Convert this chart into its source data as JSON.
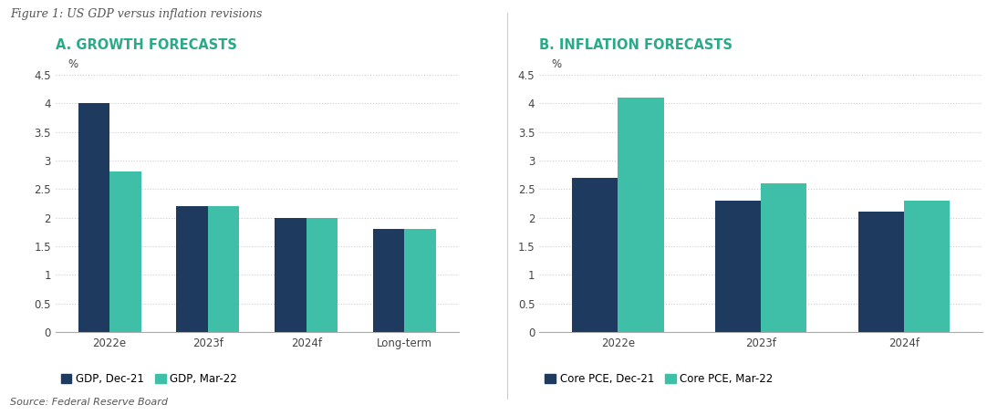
{
  "fig_title": "Figure 1: US GDP versus inflation revisions",
  "background_color": "#ffffff",
  "dark_blue": "#1e3a5f",
  "teal": "#40bfa8",
  "teal_title": "#2aaa8a",
  "fig_title_color": "#555555",
  "panel_A": {
    "title": "A. GROWTH FORECASTS",
    "categories": [
      "2022e",
      "2023f",
      "2024f",
      "Long-term"
    ],
    "series1_label": "GDP, Dec-21",
    "series2_label": "GDP, Mar-22",
    "series1_values": [
      4.0,
      2.2,
      2.0,
      1.8
    ],
    "series2_values": [
      2.8,
      2.2,
      2.0,
      1.8
    ],
    "ylabel": "%",
    "ylim": [
      0,
      4.5
    ],
    "yticks": [
      0,
      0.5,
      1,
      1.5,
      2,
      2.5,
      3,
      3.5,
      4,
      4.5
    ],
    "ytick_labels": [
      "0",
      "0.5",
      "1",
      "1.5",
      "2",
      "2.5",
      "3",
      "3.5",
      "4",
      "4.5"
    ]
  },
  "panel_B": {
    "title": "B. INFLATION FORECASTS",
    "categories": [
      "2022e",
      "2023f",
      "2024f"
    ],
    "series1_label": "Core PCE, Dec-21",
    "series2_label": "Core PCE, Mar-22",
    "series1_values": [
      2.7,
      2.3,
      2.1
    ],
    "series2_values": [
      4.1,
      2.6,
      2.3
    ],
    "ylabel": "%",
    "ylim": [
      0,
      4.5
    ],
    "yticks": [
      0,
      0.5,
      1,
      1.5,
      2,
      2.5,
      3,
      3.5,
      4,
      4.5
    ],
    "ytick_labels": [
      "0",
      "0.5",
      "1",
      "1.5",
      "2",
      "2.5",
      "3",
      "3.5",
      "4",
      "4.5"
    ]
  },
  "source_text": "Source: Federal Reserve Board",
  "bar_width": 0.32,
  "grid_color": "#cccccc",
  "separator_color": "#cccccc",
  "axis_color": "#aaaaaa",
  "tick_label_color": "#444444",
  "source_color": "#555555"
}
